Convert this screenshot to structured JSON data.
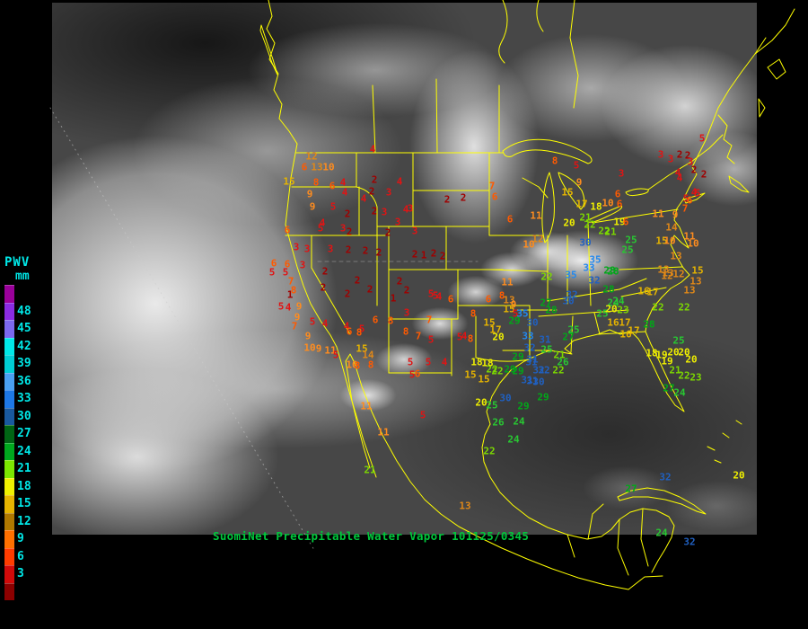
{
  "caption": {
    "text": "SuomiNet Precipitable Water Vapor 101125/0345",
    "color": "#00C83C"
  },
  "legend": {
    "title": "PWV",
    "units": "mm",
    "label_color": "#00E8E8",
    "swatches": [
      {
        "color": "#990099",
        "label": ""
      },
      {
        "color": "#8A2BE2",
        "label": "48"
      },
      {
        "color": "#7B68EE",
        "label": "45"
      },
      {
        "color": "#00E8E8",
        "label": "42"
      },
      {
        "color": "#00CDD4",
        "label": "39"
      },
      {
        "color": "#4AA0F0",
        "label": "36"
      },
      {
        "color": "#1E78E6",
        "label": "33"
      },
      {
        "color": "#19599E",
        "label": "30"
      },
      {
        "color": "#006414",
        "label": "27"
      },
      {
        "color": "#00A81E",
        "label": "24"
      },
      {
        "color": "#7CE600",
        "label": "21"
      },
      {
        "color": "#F0F000",
        "label": "18"
      },
      {
        "color": "#E6B400",
        "label": "15"
      },
      {
        "color": "#B07800",
        "label": "12"
      },
      {
        "color": "#FF7000",
        "label": "9"
      },
      {
        "color": "#FF3C00",
        "label": "6"
      },
      {
        "color": "#D20A0A",
        "label": "3"
      },
      {
        "color": "#8C0000",
        "label": ""
      }
    ]
  },
  "map": {
    "outline_color": "#FFFF00"
  },
  "color_scale": {
    "stops": [
      [
        39,
        "#00E0E0"
      ],
      [
        36,
        "#55AAFF"
      ],
      [
        33,
        "#2288EE"
      ],
      [
        30,
        "#2060C0"
      ],
      [
        27,
        "#00A818"
      ],
      [
        24,
        "#28C832"
      ],
      [
        21,
        "#7CD800"
      ],
      [
        18,
        "#F0F000"
      ],
      [
        15,
        "#E6B400"
      ],
      [
        12,
        "#E08818"
      ],
      [
        9,
        "#FF8C1E"
      ],
      [
        6,
        "#FF5A00"
      ],
      [
        3,
        "#E01414"
      ],
      [
        0,
        "#A00000"
      ]
    ]
  },
  "stations": [
    [
      347,
      174,
      12
    ],
    [
      339,
      186,
      6
    ],
    [
      353,
      186,
      13
    ],
    [
      366,
      186,
      10
    ],
    [
      322,
      202,
      15
    ],
    [
      352,
      203,
      8
    ],
    [
      370,
      207,
      6
    ],
    [
      382,
      203,
      4
    ],
    [
      384,
      214,
      4
    ],
    [
      415,
      166,
      4
    ],
    [
      417,
      200,
      2
    ],
    [
      445,
      202,
      4
    ],
    [
      345,
      216,
      9
    ],
    [
      348,
      230,
      9
    ],
    [
      414,
      213,
      2
    ],
    [
      433,
      214,
      3
    ],
    [
      405,
      221,
      4
    ],
    [
      371,
      230,
      5
    ],
    [
      387,
      238,
      2
    ],
    [
      417,
      235,
      2
    ],
    [
      428,
      236,
      3
    ],
    [
      452,
      233,
      4
    ],
    [
      457,
      232,
      3
    ],
    [
      443,
      247,
      3
    ],
    [
      359,
      248,
      4
    ],
    [
      357,
      254,
      5
    ],
    [
      382,
      254,
      3
    ],
    [
      389,
      258,
      2
    ],
    [
      432,
      259,
      2
    ],
    [
      462,
      257,
      3
    ],
    [
      320,
      256,
      6
    ],
    [
      330,
      275,
      3
    ],
    [
      342,
      277,
      3
    ],
    [
      368,
      277,
      3
    ],
    [
      388,
      278,
      2
    ],
    [
      407,
      279,
      2
    ],
    [
      422,
      281,
      2
    ],
    [
      462,
      283,
      2
    ],
    [
      472,
      284,
      1
    ],
    [
      483,
      282,
      2
    ],
    [
      493,
      285,
      2
    ],
    [
      498,
      222,
      2
    ],
    [
      516,
      220,
      2
    ],
    [
      568,
      244,
      6
    ],
    [
      597,
      240,
      11
    ],
    [
      548,
      207,
      7
    ],
    [
      551,
      219,
      6
    ],
    [
      618,
      179,
      8
    ],
    [
      642,
      184,
      5
    ],
    [
      645,
      203,
      9
    ],
    [
      632,
      214,
      15
    ],
    [
      648,
      227,
      17
    ],
    [
      664,
      230,
      18
    ],
    [
      677,
      226,
      10
    ],
    [
      634,
      248,
      20
    ],
    [
      652,
      242,
      21
    ],
    [
      690,
      247,
      19
    ],
    [
      697,
      247,
      6
    ],
    [
      657,
      250,
      22
    ],
    [
      673,
      257,
      22
    ],
    [
      680,
      258,
      21
    ],
    [
      599,
      266,
      12
    ],
    [
      589,
      272,
      10
    ],
    [
      652,
      270,
      30
    ],
    [
      703,
      267,
      25
    ],
    [
      699,
      278,
      25
    ],
    [
      663,
      289,
      35
    ],
    [
      656,
      298,
      33
    ],
    [
      636,
      306,
      35
    ],
    [
      679,
      301,
      28
    ],
    [
      662,
      312,
      32
    ],
    [
      609,
      308,
      22
    ],
    [
      565,
      314,
      11
    ],
    [
      782,
      154,
      5
    ],
    [
      736,
      172,
      3
    ],
    [
      747,
      177,
      3
    ],
    [
      757,
      172,
      2
    ],
    [
      766,
      173,
      2
    ],
    [
      769,
      180,
      3
    ],
    [
      773,
      189,
      2
    ],
    [
      784,
      194,
      2
    ],
    [
      755,
      192,
      4
    ],
    [
      757,
      198,
      4
    ],
    [
      692,
      193,
      3
    ],
    [
      773,
      214,
      4
    ],
    [
      777,
      215,
      5
    ],
    [
      764,
      221,
      5
    ],
    [
      768,
      223,
      6
    ],
    [
      688,
      216,
      6
    ],
    [
      690,
      227,
      6
    ],
    [
      763,
      232,
      7
    ],
    [
      752,
      239,
      9
    ],
    [
      733,
      238,
      11
    ],
    [
      748,
      253,
      14
    ],
    [
      768,
      263,
      11
    ],
    [
      737,
      268,
      15
    ],
    [
      772,
      271,
      10
    ],
    [
      746,
      268,
      10
    ],
    [
      753,
      285,
      13
    ],
    [
      739,
      300,
      13
    ],
    [
      743,
      307,
      12
    ],
    [
      678,
      322,
      28
    ],
    [
      559,
      329,
      8
    ],
    [
      544,
      333,
      6
    ],
    [
      567,
      334,
      13
    ],
    [
      572,
      339,
      9
    ],
    [
      567,
      344,
      15
    ],
    [
      574,
      349,
      5
    ],
    [
      582,
      349,
      35
    ],
    [
      593,
      359,
      30
    ],
    [
      573,
      357,
      29
    ],
    [
      527,
      349,
      8
    ],
    [
      545,
      359,
      15
    ],
    [
      552,
      367,
      17
    ],
    [
      555,
      375,
      20
    ],
    [
      524,
      377,
      8
    ],
    [
      531,
      403,
      18
    ],
    [
      524,
      417,
      15
    ],
    [
      548,
      411,
      22
    ],
    [
      568,
      411,
      29
    ],
    [
      637,
      328,
      32
    ],
    [
      633,
      335,
      30
    ],
    [
      608,
      337,
      27
    ],
    [
      614,
      345,
      28
    ],
    [
      683,
      337,
      24
    ],
    [
      671,
      349,
      25
    ],
    [
      639,
      367,
      25
    ],
    [
      633,
      375,
      27
    ],
    [
      588,
      374,
      33
    ],
    [
      607,
      378,
      31
    ],
    [
      590,
      387,
      32
    ],
    [
      593,
      400,
      31
    ],
    [
      577,
      397,
      29
    ],
    [
      600,
      412,
      32
    ],
    [
      587,
      423,
      31
    ],
    [
      600,
      425,
      30
    ],
    [
      609,
      389,
      25
    ],
    [
      623,
      395,
      21
    ],
    [
      627,
      403,
      26
    ],
    [
      622,
      412,
      22
    ],
    [
      543,
      404,
      18
    ],
    [
      554,
      413,
      22
    ],
    [
      539,
      422,
      15
    ],
    [
      577,
      413,
      29
    ],
    [
      592,
      403,
      31
    ],
    [
      606,
      412,
      32
    ],
    [
      593,
      424,
      31
    ],
    [
      563,
      443,
      30
    ],
    [
      536,
      448,
      20
    ],
    [
      548,
      451,
      25
    ],
    [
      583,
      452,
      29
    ],
    [
      605,
      442,
      29
    ],
    [
      555,
      470,
      26
    ],
    [
      578,
      469,
      24
    ],
    [
      572,
      489,
      24
    ],
    [
      545,
      502,
      22
    ],
    [
      471,
      462,
      5
    ],
    [
      457,
      403,
      5
    ],
    [
      459,
      417,
      5
    ],
    [
      495,
      403,
      4
    ],
    [
      477,
      403,
      5
    ],
    [
      465,
      416,
      6
    ],
    [
      453,
      348,
      3
    ],
    [
      478,
      356,
      7
    ],
    [
      452,
      369,
      8
    ],
    [
      466,
      374,
      7
    ],
    [
      480,
      378,
      5
    ],
    [
      512,
      375,
      5
    ],
    [
      517,
      374,
      4
    ],
    [
      408,
      452,
      11
    ],
    [
      427,
      481,
      11
    ],
    [
      412,
      523,
      21
    ],
    [
      518,
      563,
      13
    ],
    [
      305,
      293,
      6
    ],
    [
      320,
      294,
      6
    ],
    [
      337,
      295,
      3
    ],
    [
      303,
      303,
      5
    ],
    [
      318,
      303,
      5
    ],
    [
      362,
      302,
      2
    ],
    [
      324,
      313,
      7
    ],
    [
      327,
      323,
      8
    ],
    [
      398,
      312,
      2
    ],
    [
      360,
      320,
      2
    ],
    [
      412,
      322,
      2
    ],
    [
      387,
      327,
      2
    ],
    [
      445,
      313,
      2
    ],
    [
      453,
      323,
      2
    ],
    [
      438,
      332,
      1
    ],
    [
      480,
      327,
      5
    ],
    [
      485,
      329,
      5
    ],
    [
      489,
      330,
      4
    ],
    [
      502,
      333,
      6
    ],
    [
      323,
      328,
      1
    ],
    [
      313,
      341,
      5
    ],
    [
      321,
      342,
      4
    ],
    [
      333,
      341,
      9
    ],
    [
      331,
      353,
      9
    ],
    [
      348,
      358,
      5
    ],
    [
      362,
      360,
      4
    ],
    [
      328,
      363,
      7
    ],
    [
      386,
      363,
      4
    ],
    [
      389,
      369,
      6
    ],
    [
      403,
      366,
      5
    ],
    [
      400,
      370,
      8
    ],
    [
      418,
      356,
      6
    ],
    [
      435,
      357,
      8
    ],
    [
      343,
      374,
      9
    ],
    [
      345,
      387,
      10
    ],
    [
      355,
      388,
      9
    ],
    [
      368,
      390,
      11
    ],
    [
      374,
      395,
      5
    ],
    [
      403,
      388,
      15
    ],
    [
      410,
      395,
      14
    ],
    [
      392,
      406,
      10
    ],
    [
      398,
      407,
      8
    ],
    [
      413,
      406,
      8
    ],
    [
      744,
      304,
      13
    ],
    [
      756,
      305,
      12
    ],
    [
      777,
      301,
      15
    ],
    [
      775,
      313,
      13
    ],
    [
      768,
      323,
      13
    ],
    [
      717,
      324,
      16
    ],
    [
      727,
      325,
      17
    ],
    [
      733,
      342,
      22
    ],
    [
      762,
      342,
      22
    ],
    [
      723,
      361,
      28
    ],
    [
      756,
      379,
      25
    ],
    [
      689,
      335,
      24
    ],
    [
      683,
      302,
      28
    ],
    [
      706,
      368,
      17
    ],
    [
      697,
      372,
      16
    ],
    [
      726,
      393,
      18
    ],
    [
      737,
      395,
      19
    ],
    [
      750,
      392,
      20
    ],
    [
      762,
      392,
      20
    ],
    [
      743,
      402,
      19
    ],
    [
      770,
      400,
      20
    ],
    [
      752,
      412,
      21
    ],
    [
      762,
      418,
      22
    ],
    [
      775,
      420,
      23
    ],
    [
      745,
      432,
      27
    ],
    [
      757,
      437,
      24
    ],
    [
      823,
      529,
      20
    ],
    [
      741,
      531,
      32
    ],
    [
      703,
      544,
      27
    ],
    [
      737,
      593,
      24
    ],
    [
      768,
      603,
      32
    ],
    [
      681,
      344,
      20
    ],
    [
      694,
      345,
      23
    ],
    [
      683,
      359,
      16
    ],
    [
      696,
      359,
      17
    ]
  ]
}
